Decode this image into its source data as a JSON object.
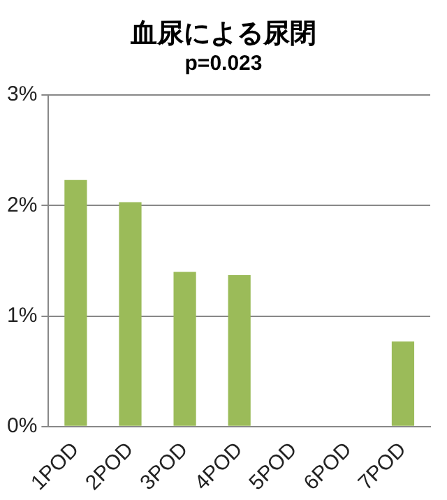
{
  "chart_data": {
    "type": "bar",
    "title": "血尿による尿閉",
    "subtitle": "p=0.023",
    "categories": [
      "1POD",
      "2POD",
      "3POD",
      "4POD",
      "5POD",
      "6POD",
      "7POD"
    ],
    "values": [
      2.23,
      2.03,
      1.4,
      1.37,
      0,
      0,
      0.77
    ],
    "color": "#9bbb59",
    "ylim": [
      0,
      3
    ],
    "yticks": [
      {
        "value": 0,
        "label": "0%"
      },
      {
        "value": 1,
        "label": "1%"
      },
      {
        "value": 2,
        "label": "2%"
      },
      {
        "value": 3,
        "label": "3%"
      }
    ],
    "grid": "y",
    "legend": false
  }
}
